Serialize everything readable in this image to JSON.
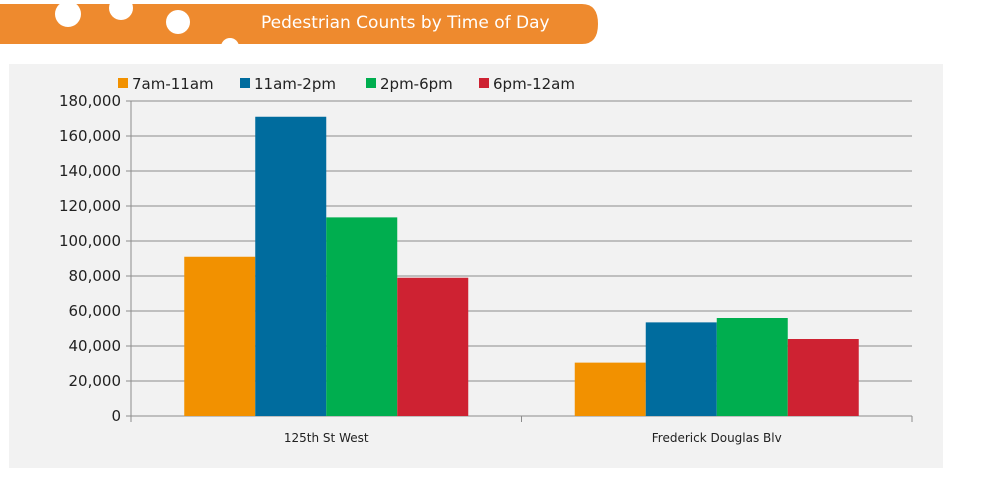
{
  "banner": {
    "title": "Pedestrian Counts by Time of Day",
    "color": "#EE8A2E"
  },
  "chart_data": {
    "type": "bar",
    "title": "Pedestrian Counts by Time of Day",
    "xlabel": "",
    "ylabel": "",
    "categories": [
      "125th St West",
      "Frederick Douglas Blv"
    ],
    "series": [
      {
        "name": "7am-11am",
        "color": "#F29100",
        "values": [
          91000,
          30500
        ]
      },
      {
        "name": "11am-2pm",
        "color": "#006C9E",
        "values": [
          171000,
          53500
        ]
      },
      {
        "name": "2pm-6pm",
        "color": "#00AE4F",
        "values": [
          113500,
          56000
        ]
      },
      {
        "name": "6pm-12am",
        "color": "#CE2232",
        "values": [
          79000,
          44000
        ]
      }
    ],
    "ylim": [
      0,
      180000
    ],
    "yticks": [
      "180,000",
      "160,000",
      "140,000",
      "120,000",
      "100,000",
      "80,000",
      "60,000",
      "40,000",
      "20,000",
      "0"
    ],
    "grid": true,
    "legend_position": "top-left"
  }
}
